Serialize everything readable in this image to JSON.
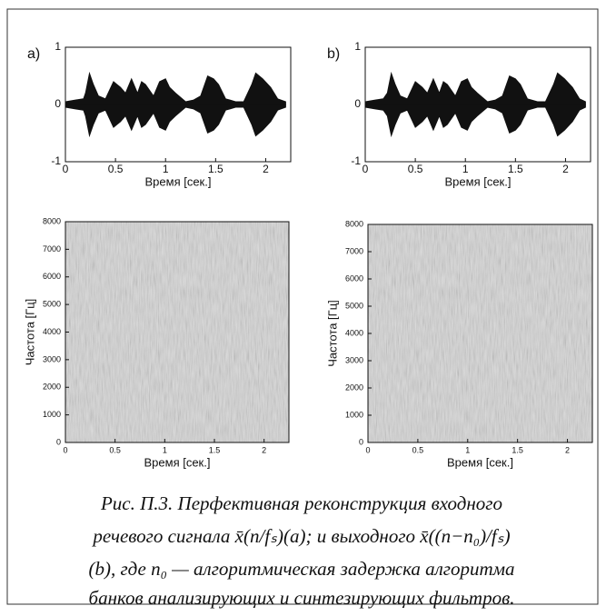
{
  "chart_data": [
    {
      "type": "waveform",
      "panel": "a)",
      "xlabel": "Время [сек.]",
      "xlim": [
        0,
        2.25
      ],
      "xticks": [
        0,
        0.5,
        1,
        1.5,
        2
      ],
      "ylim": [
        -1,
        1
      ],
      "yticks": [
        -1,
        0,
        1
      ],
      "color": "#111111",
      "x": [
        0,
        0.1,
        0.18,
        0.2,
        0.24,
        0.28,
        0.33,
        0.4,
        0.48,
        0.55,
        0.6,
        0.66,
        0.72,
        0.76,
        0.8,
        0.88,
        0.94,
        1.0,
        1.04,
        1.1,
        1.2,
        1.28,
        1.35,
        1.42,
        1.48,
        1.53,
        1.6,
        1.7,
        1.78,
        1.86,
        1.9,
        1.97,
        2.05,
        2.12,
        2.2
      ],
      "values": [
        0.05,
        0.08,
        0.1,
        0.2,
        0.55,
        0.35,
        0.15,
        0.1,
        0.4,
        0.3,
        0.2,
        0.45,
        0.2,
        0.4,
        0.35,
        0.15,
        0.4,
        0.45,
        0.3,
        0.2,
        0.05,
        0.08,
        0.15,
        0.5,
        0.45,
        0.35,
        0.1,
        0.05,
        0.05,
        0.35,
        0.55,
        0.45,
        0.3,
        0.1,
        0.05
      ]
    },
    {
      "type": "waveform",
      "panel": "b)",
      "xlabel": "Время [сек.]",
      "xlim": [
        0,
        2.25
      ],
      "xticks": [
        0,
        0.5,
        1,
        1.5,
        2
      ],
      "ylim": [
        -1,
        1
      ],
      "yticks": [
        -1,
        0,
        1
      ],
      "color": "#111111",
      "x": [
        0,
        0.1,
        0.18,
        0.22,
        0.26,
        0.3,
        0.35,
        0.42,
        0.5,
        0.57,
        0.62,
        0.68,
        0.74,
        0.78,
        0.82,
        0.9,
        0.96,
        1.02,
        1.06,
        1.12,
        1.22,
        1.3,
        1.37,
        1.44,
        1.5,
        1.55,
        1.62,
        1.72,
        1.8,
        1.88,
        1.92,
        1.99,
        2.07,
        2.14,
        2.2
      ],
      "values": [
        0.05,
        0.08,
        0.1,
        0.2,
        0.55,
        0.35,
        0.15,
        0.1,
        0.4,
        0.3,
        0.2,
        0.45,
        0.2,
        0.4,
        0.35,
        0.15,
        0.4,
        0.45,
        0.3,
        0.2,
        0.05,
        0.08,
        0.15,
        0.5,
        0.45,
        0.35,
        0.1,
        0.05,
        0.05,
        0.35,
        0.55,
        0.45,
        0.3,
        0.1,
        0.05
      ]
    },
    {
      "type": "spectrogram",
      "xlabel": "Время [сек.]",
      "ylabel": "Частота [Гц]",
      "xlim": [
        0,
        2.25
      ],
      "xticks": [
        0,
        0.5,
        1,
        1.5,
        2
      ],
      "ylim": [
        0,
        8000
      ],
      "yticks": [
        0,
        1000,
        2000,
        3000,
        4000,
        5000,
        6000,
        7000,
        8000
      ]
    },
    {
      "type": "spectrogram",
      "xlabel": "Время [сек.]",
      "ylabel": "Частота [Гц]",
      "xlim": [
        0,
        2.25
      ],
      "xticks": [
        0,
        0.5,
        1,
        1.5,
        2
      ],
      "ylim": [
        0,
        8000
      ],
      "yticks": [
        0,
        1000,
        2000,
        3000,
        4000,
        5000,
        6000,
        7000,
        8000
      ]
    }
  ],
  "caption": {
    "lines": [
      "Рис. П.3.  Перфективная реконструкция входного",
      "речевого сигнала  x̄(n/fₛ)(a); и выходного x̄((n−n₀)/fₛ)",
      "(b), где n₀ — алгоритмическая задержка алгоритма",
      "банков анализирующих и синтезирующих фильтров."
    ]
  }
}
